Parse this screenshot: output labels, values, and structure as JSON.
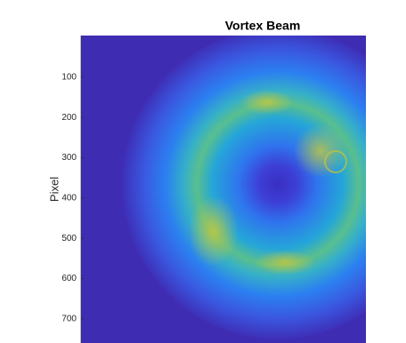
{
  "chart_data": {
    "type": "image",
    "title": "Vortex Beam",
    "ylabel": "Pixel",
    "ylim": [
      0,
      760
    ],
    "yticks": [
      100,
      200,
      300,
      400,
      500,
      600,
      700
    ],
    "y_direction": "reverse"
  }
}
